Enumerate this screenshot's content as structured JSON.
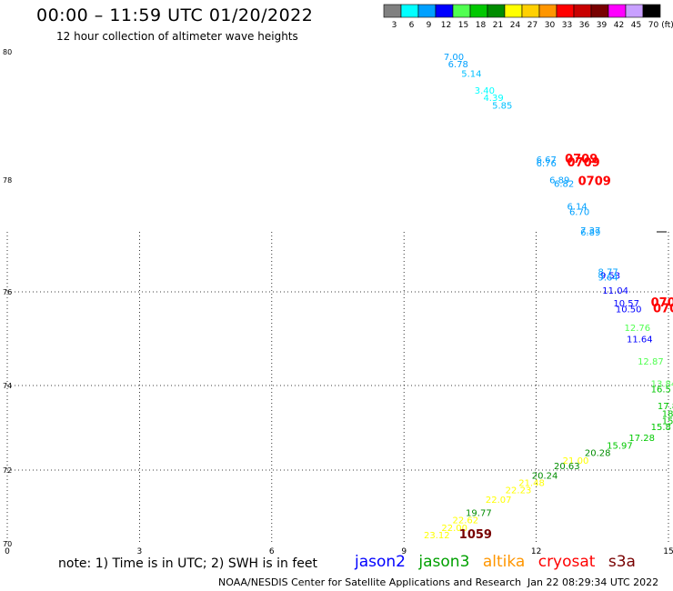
{
  "header": {
    "title": "00:00 – 11:59 UTC 01/20/2022",
    "subtitle": "12 hour collection of altimeter wave heights"
  },
  "legend": {
    "unit": "(ft)",
    "bins": [
      {
        "label": "3",
        "color": "#808080"
      },
      {
        "label": "6",
        "color": "#00ffff"
      },
      {
        "label": "9",
        "color": "#00a0ff"
      },
      {
        "label": "12",
        "color": "#0000ff"
      },
      {
        "label": "15",
        "color": "#50ff50"
      },
      {
        "label": "18",
        "color": "#00c800"
      },
      {
        "label": "21",
        "color": "#008c00"
      },
      {
        "label": "24",
        "color": "#ffff00"
      },
      {
        "label": "27",
        "color": "#ffd000"
      },
      {
        "label": "30",
        "color": "#ff9600"
      },
      {
        "label": "33",
        "color": "#ff0000"
      },
      {
        "label": "36",
        "color": "#c80000"
      },
      {
        "label": "39",
        "color": "#780000"
      },
      {
        "label": "42",
        "color": "#ff00ff"
      },
      {
        "label": "45",
        "color": "#c8a0ff"
      },
      {
        "label": "70",
        "color": "#000000"
      }
    ]
  },
  "axes": {
    "x_ticks": [
      "0",
      "3",
      "6",
      "9",
      "12",
      "15"
    ],
    "y_ticks": [
      "70",
      "72",
      "74",
      "76",
      "78",
      "80"
    ]
  },
  "wave_heights": [
    {
      "text": "7.00",
      "color": "#00a0ff",
      "lon": 9.9,
      "lat": 79.8
    },
    {
      "text": "6.78",
      "color": "#00a0ff",
      "lon": 10.0,
      "lat": 79.6
    },
    {
      "text": "5.14",
      "color": "#00c0ff",
      "lon": 10.3,
      "lat": 79.35
    },
    {
      "text": "3.40",
      "color": "#00ffff",
      "lon": 10.6,
      "lat": 78.9
    },
    {
      "text": "4.39",
      "color": "#00ffff",
      "lon": 10.8,
      "lat": 78.7
    },
    {
      "text": "5.85",
      "color": "#00c0ff",
      "lon": 11.0,
      "lat": 78.5
    },
    {
      "text": "6.67",
      "color": "#00a0ff",
      "lon": 12.0,
      "lat": 77.05
    },
    {
      "text": "6.76",
      "color": "#00a0ff",
      "lon": 12.0,
      "lat": 76.95
    },
    {
      "text": "0709",
      "color": "#ff0000",
      "lon": 12.65,
      "lat": 77.05
    },
    {
      "text": "0709",
      "color": "#ff0000",
      "lon": 12.7,
      "lat": 76.95
    },
    {
      "text": "6.89",
      "color": "#00a0ff",
      "lon": 12.3,
      "lat": 76.5
    },
    {
      "text": "6.82",
      "color": "#00a0ff",
      "lon": 12.4,
      "lat": 76.4
    },
    {
      "text": "0709",
      "color": "#ff0000",
      "lon": 12.95,
      "lat": 76.45
    },
    {
      "text": "6.14",
      "color": "#00a0ff",
      "lon": 12.7,
      "lat": 75.8
    },
    {
      "text": "6.70",
      "color": "#00a0ff",
      "lon": 12.75,
      "lat": 75.65
    },
    {
      "text": "7.37",
      "color": "#00a0ff",
      "lon": 13.0,
      "lat": 75.15
    },
    {
      "text": "6.89",
      "color": "#00a0ff",
      "lon": 13.0,
      "lat": 75.1
    },
    {
      "text": "8.77",
      "color": "#00a0ff",
      "lon": 13.4,
      "lat": 74.05
    },
    {
      "text": "9.53",
      "color": "#0000ff",
      "lon": 13.45,
      "lat": 73.95
    },
    {
      "text": "9.64",
      "color": "#00a0ff",
      "lon": 13.4,
      "lat": 73.9
    },
    {
      "text": "11.04",
      "color": "#0000ff",
      "lon": 13.5,
      "lat": 73.55
    },
    {
      "text": "10.57",
      "color": "#0000ff",
      "lon": 13.75,
      "lat": 73.2
    },
    {
      "text": "10.50",
      "color": "#0000ff",
      "lon": 13.8,
      "lat": 73.05
    },
    {
      "text": "070",
      "color": "#ff0000",
      "lon": 14.6,
      "lat": 73.2
    },
    {
      "text": "070",
      "color": "#ff0000",
      "lon": 14.65,
      "lat": 73.05
    },
    {
      "text": "12.76",
      "color": "#50ff50",
      "lon": 14.0,
      "lat": 72.55
    },
    {
      "text": "11.64",
      "color": "#0000ff",
      "lon": 14.05,
      "lat": 72.25
    },
    {
      "text": "12.87",
      "color": "#50ff50",
      "lon": 14.3,
      "lat": 71.65
    },
    {
      "text": "13.84",
      "color": "#50ff50",
      "lon": 14.6,
      "lat": 71.05
    },
    {
      "text": "16.5",
      "color": "#00c800",
      "lon": 14.6,
      "lat": 70.9
    },
    {
      "text": "17.8",
      "color": "#00c800",
      "lon": 14.75,
      "lat": 70.45
    },
    {
      "text": "18",
      "color": "#00c800",
      "lon": 14.85,
      "lat": 70.25
    },
    {
      "text": "15",
      "color": "#00c800",
      "lon": 14.85,
      "lat": 70.05
    },
    {
      "text": "15.8",
      "color": "#00c800",
      "lon": 14.6,
      "lat": 69.9
    },
    {
      "text": "17.28",
      "color": "#00c800",
      "lon": 14.1,
      "lat": 69.6
    },
    {
      "text": "15.97",
      "color": "#00c800",
      "lon": 13.6,
      "lat": 69.4
    },
    {
      "text": "20.28",
      "color": "#008c00",
      "lon": 13.1,
      "lat": 69.2
    },
    {
      "text": "21.00",
      "color": "#ffff00",
      "lon": 12.6,
      "lat": 69.0
    },
    {
      "text": "20.63",
      "color": "#008c00",
      "lon": 12.4,
      "lat": 68.85
    },
    {
      "text": "20.24",
      "color": "#008c00",
      "lon": 11.9,
      "lat": 68.6
    },
    {
      "text": "21.48",
      "color": "#ffff00",
      "lon": 11.6,
      "lat": 68.4
    },
    {
      "text": "22.23",
      "color": "#ffff00",
      "lon": 11.3,
      "lat": 68.2
    },
    {
      "text": "22.07",
      "color": "#ffff00",
      "lon": 10.85,
      "lat": 67.95
    },
    {
      "text": "19.77",
      "color": "#008c00",
      "lon": 10.4,
      "lat": 67.6
    },
    {
      "text": "22.62",
      "color": "#ffff00",
      "lon": 10.1,
      "lat": 67.4
    },
    {
      "text": "22.00",
      "color": "#ffff00",
      "lon": 9.85,
      "lat": 67.2
    },
    {
      "text": "23.12",
      "color": "#ffff00",
      "lon": 9.45,
      "lat": 67.0
    },
    {
      "text": "1059",
      "color": "#780000",
      "lon": 10.25,
      "lat": 67.0
    }
  ],
  "footer": {
    "note": "note: 1) Time is in UTC; 2) SWH is in feet",
    "satellites": [
      {
        "name": "jason2",
        "color": "#0000ff"
      },
      {
        "name": "jason3",
        "color": "#00a000"
      },
      {
        "name": "altika",
        "color": "#ff9600"
      },
      {
        "name": "cryosat",
        "color": "#ff0000"
      },
      {
        "name": "s3a",
        "color": "#780000"
      }
    ],
    "credit": "NOAA/NESDIS Center for Satellite Applications and Research",
    "timestamp": "Jan 22 08:29:34 UTC 2022"
  }
}
